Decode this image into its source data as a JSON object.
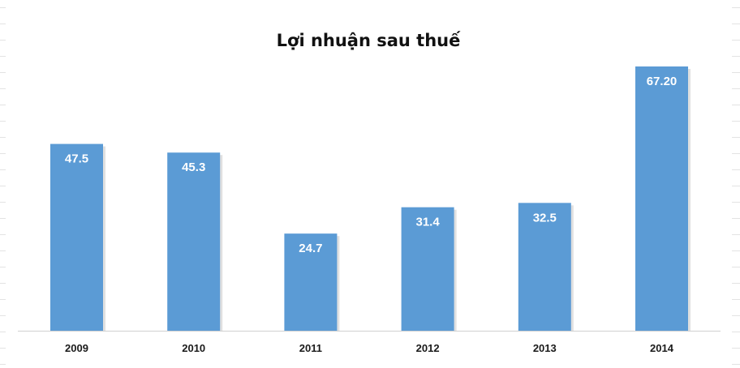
{
  "chart_data": {
    "type": "bar",
    "title": "Lợi nhuận sau thuế",
    "categories": [
      "2009",
      "2010",
      "2011",
      "2012",
      "2013",
      "2014"
    ],
    "values": [
      47.5,
      45.3,
      24.7,
      31.4,
      32.5,
      67.2
    ],
    "data_labels": [
      "47.5",
      "45.3",
      "24.7",
      "31.4",
      "32.5",
      "67.20"
    ],
    "xlabel": "",
    "ylabel": "",
    "ylim": [
      0,
      70
    ],
    "grid": false,
    "legend": "none",
    "bar_color": "#5b9bd5"
  }
}
